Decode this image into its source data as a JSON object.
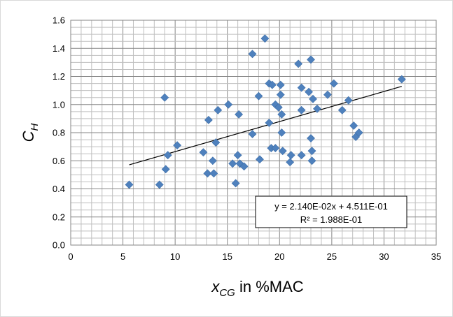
{
  "chart_data": {
    "type": "scatter",
    "title": "",
    "xlabel": {
      "main": "x",
      "sub": "CG",
      "suffix": " in %MAC"
    },
    "ylabel": {
      "main": "C",
      "sub": "H"
    },
    "xlim": [
      0,
      35
    ],
    "ylim": [
      0,
      1.6
    ],
    "x_ticks": [
      0,
      5,
      10,
      15,
      20,
      25,
      30,
      35
    ],
    "y_ticks": [
      0.0,
      0.2,
      0.4,
      0.6,
      0.8,
      1.0,
      1.2,
      1.4,
      1.6
    ],
    "x_tick_labels": [
      "0",
      "5",
      "10",
      "15",
      "20",
      "25",
      "30",
      "35"
    ],
    "y_tick_labels": [
      "0.0",
      "0.2",
      "0.4",
      "0.6",
      "0.8",
      "1.0",
      "1.2",
      "1.4",
      "1.6"
    ],
    "grid": true,
    "marker_color": "#4f81bd",
    "trendline_color": "#000000",
    "points": [
      [
        5.6,
        0.43
      ],
      [
        8.5,
        0.43
      ],
      [
        9.0,
        1.05
      ],
      [
        9.1,
        0.54
      ],
      [
        9.3,
        0.64
      ],
      [
        10.2,
        0.71
      ],
      [
        12.7,
        0.66
      ],
      [
        13.1,
        0.51
      ],
      [
        13.2,
        0.89
      ],
      [
        13.6,
        0.6
      ],
      [
        13.7,
        0.51
      ],
      [
        13.9,
        0.73
      ],
      [
        14.1,
        0.96
      ],
      [
        15.1,
        1.0
      ],
      [
        15.5,
        0.58
      ],
      [
        15.8,
        0.44
      ],
      [
        16.0,
        0.64
      ],
      [
        16.1,
        0.93
      ],
      [
        16.2,
        0.58
      ],
      [
        16.6,
        0.56
      ],
      [
        17.4,
        1.36
      ],
      [
        17.4,
        0.79
      ],
      [
        18.0,
        1.06
      ],
      [
        18.1,
        0.61
      ],
      [
        18.6,
        1.47
      ],
      [
        19.0,
        0.87
      ],
      [
        19.0,
        1.15
      ],
      [
        19.2,
        0.69
      ],
      [
        19.3,
        1.14
      ],
      [
        19.6,
        1.0
      ],
      [
        19.6,
        0.69
      ],
      [
        19.9,
        0.98
      ],
      [
        20.1,
        1.14
      ],
      [
        20.1,
        1.07
      ],
      [
        20.2,
        0.93
      ],
      [
        20.2,
        0.8
      ],
      [
        20.3,
        0.67
      ],
      [
        21.0,
        0.59
      ],
      [
        21.1,
        0.64
      ],
      [
        21.8,
        1.29
      ],
      [
        22.1,
        1.12
      ],
      [
        22.1,
        0.96
      ],
      [
        22.1,
        0.64
      ],
      [
        22.8,
        1.09
      ],
      [
        23.0,
        1.32
      ],
      [
        23.0,
        0.76
      ],
      [
        23.1,
        0.67
      ],
      [
        23.1,
        0.6
      ],
      [
        23.2,
        1.04
      ],
      [
        23.6,
        0.97
      ],
      [
        24.6,
        1.07
      ],
      [
        25.2,
        1.15
      ],
      [
        26.0,
        0.96
      ],
      [
        26.6,
        1.03
      ],
      [
        27.1,
        0.85
      ],
      [
        27.3,
        0.77
      ],
      [
        27.6,
        0.8
      ],
      [
        31.7,
        1.18
      ]
    ],
    "trendline": {
      "slope": 0.0214,
      "intercept": 0.4511,
      "x_range": [
        5.6,
        31.7
      ]
    },
    "annotation": [
      "y = 2.140E-02x + 4.511E-01",
      "R² = 1.988E-01"
    ]
  }
}
